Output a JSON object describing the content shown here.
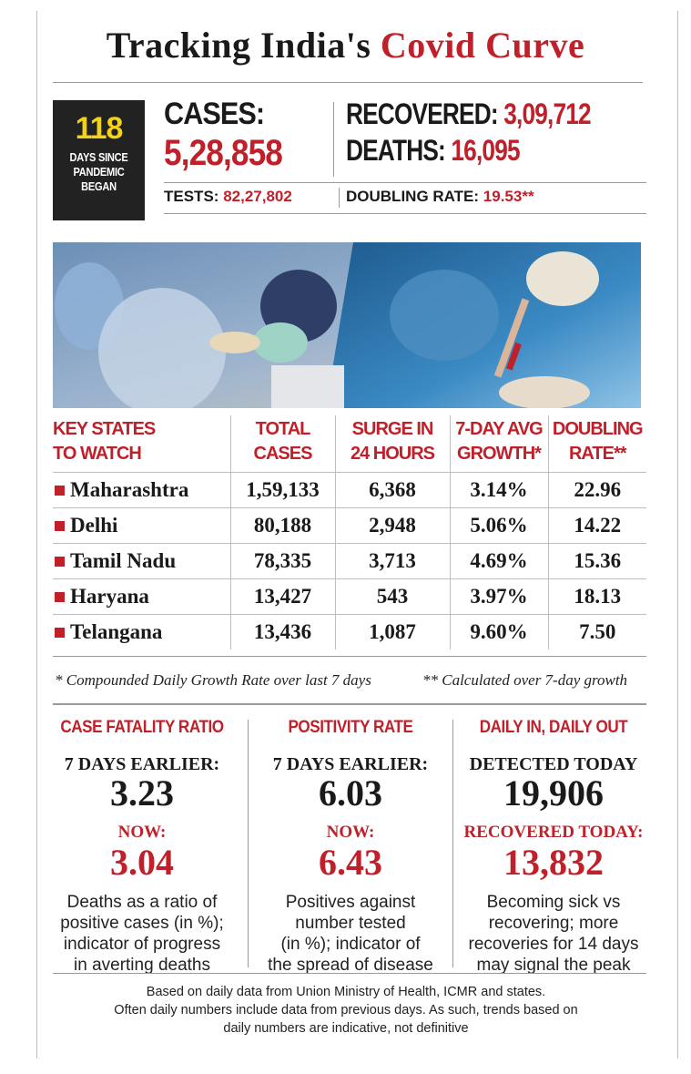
{
  "header": {
    "title_part1": "Tracking India's",
    "title_part2": "Covid Curve"
  },
  "summary": {
    "days_number": "118",
    "days_label_line1": "DAYS SINCE",
    "days_label_line2": "PANDEMIC",
    "days_label_line3": "BEGAN",
    "cases_label": "CASES:",
    "cases_value": "5,28,858",
    "recovered_label": "RECOVERED:",
    "recovered_value": "3,09,712",
    "deaths_label": "DEATHS:",
    "deaths_value": "16,095",
    "tests_label": "TESTS:",
    "tests_value": "82,27,802",
    "doubling_label": "DOUBLING RATE:",
    "doubling_value": "19.53**"
  },
  "table": {
    "headers": [
      {
        "line1": "KEY STATES",
        "line2": "TO WATCH"
      },
      {
        "line1": "TOTAL",
        "line2": "CASES"
      },
      {
        "line1": "SURGE IN",
        "line2": "24 HOURS"
      },
      {
        "line1": "7-DAY AVG",
        "line2": "GROWTH*"
      },
      {
        "line1": "DOUBLING",
        "line2": "RATE**"
      }
    ],
    "rows": [
      [
        "Maharashtra",
        "1,59,133",
        "6,368",
        "3.14%",
        "22.96"
      ],
      [
        "Delhi",
        "80,188",
        "2,948",
        "5.06%",
        "14.22"
      ],
      [
        "Tamil Nadu",
        "78,335",
        "3,713",
        "4.69%",
        "15.36"
      ],
      [
        "Haryana",
        "13,427",
        "543",
        "3.97%",
        "18.13"
      ],
      [
        "Telangana",
        "13,436",
        "1,087",
        "9.60%",
        "7.50"
      ]
    ],
    "footnote_left": "* Compounded Daily Growth Rate over last 7 days",
    "footnote_right": "** Calculated over 7-day growth"
  },
  "panels": [
    {
      "title": "CASE FATALITY RATIO",
      "sub": "7 DAYS EARLIER:",
      "big": "3.23",
      "now": "NOW:",
      "big_red": "3.04",
      "desc_lines": [
        "Deaths as a ratio of",
        "positive cases (in %);",
        "indicator of progress",
        "in averting deaths"
      ]
    },
    {
      "title": "POSITIVITY RATE",
      "sub": "7 DAYS EARLIER:",
      "big": "6.03",
      "now": "NOW:",
      "big_red": "6.43",
      "desc_lines": [
        "Positives against",
        "number tested",
        "(in %); indicator of",
        "the spread of disease"
      ]
    },
    {
      "title": "DAILY IN, DAILY OUT",
      "sub": "DETECTED TODAY",
      "big": "19,906",
      "now": "RECOVERED TODAY:",
      "big_red": "13,832",
      "desc_lines": [
        "Becoming sick vs",
        "recovering; more",
        "recoveries for 14 days",
        "may signal the peak"
      ]
    }
  ],
  "bottom_note": [
    "Based on daily data from Union Ministry of Health, ICMR and states.",
    "Often daily numbers include data from previous days. As such, trends based on",
    "daily numbers are indicative, not definitive"
  ],
  "colors": {
    "accent_red": "#c0202a",
    "days_yellow": "#f4d21a",
    "days_bg": "#222222"
  }
}
